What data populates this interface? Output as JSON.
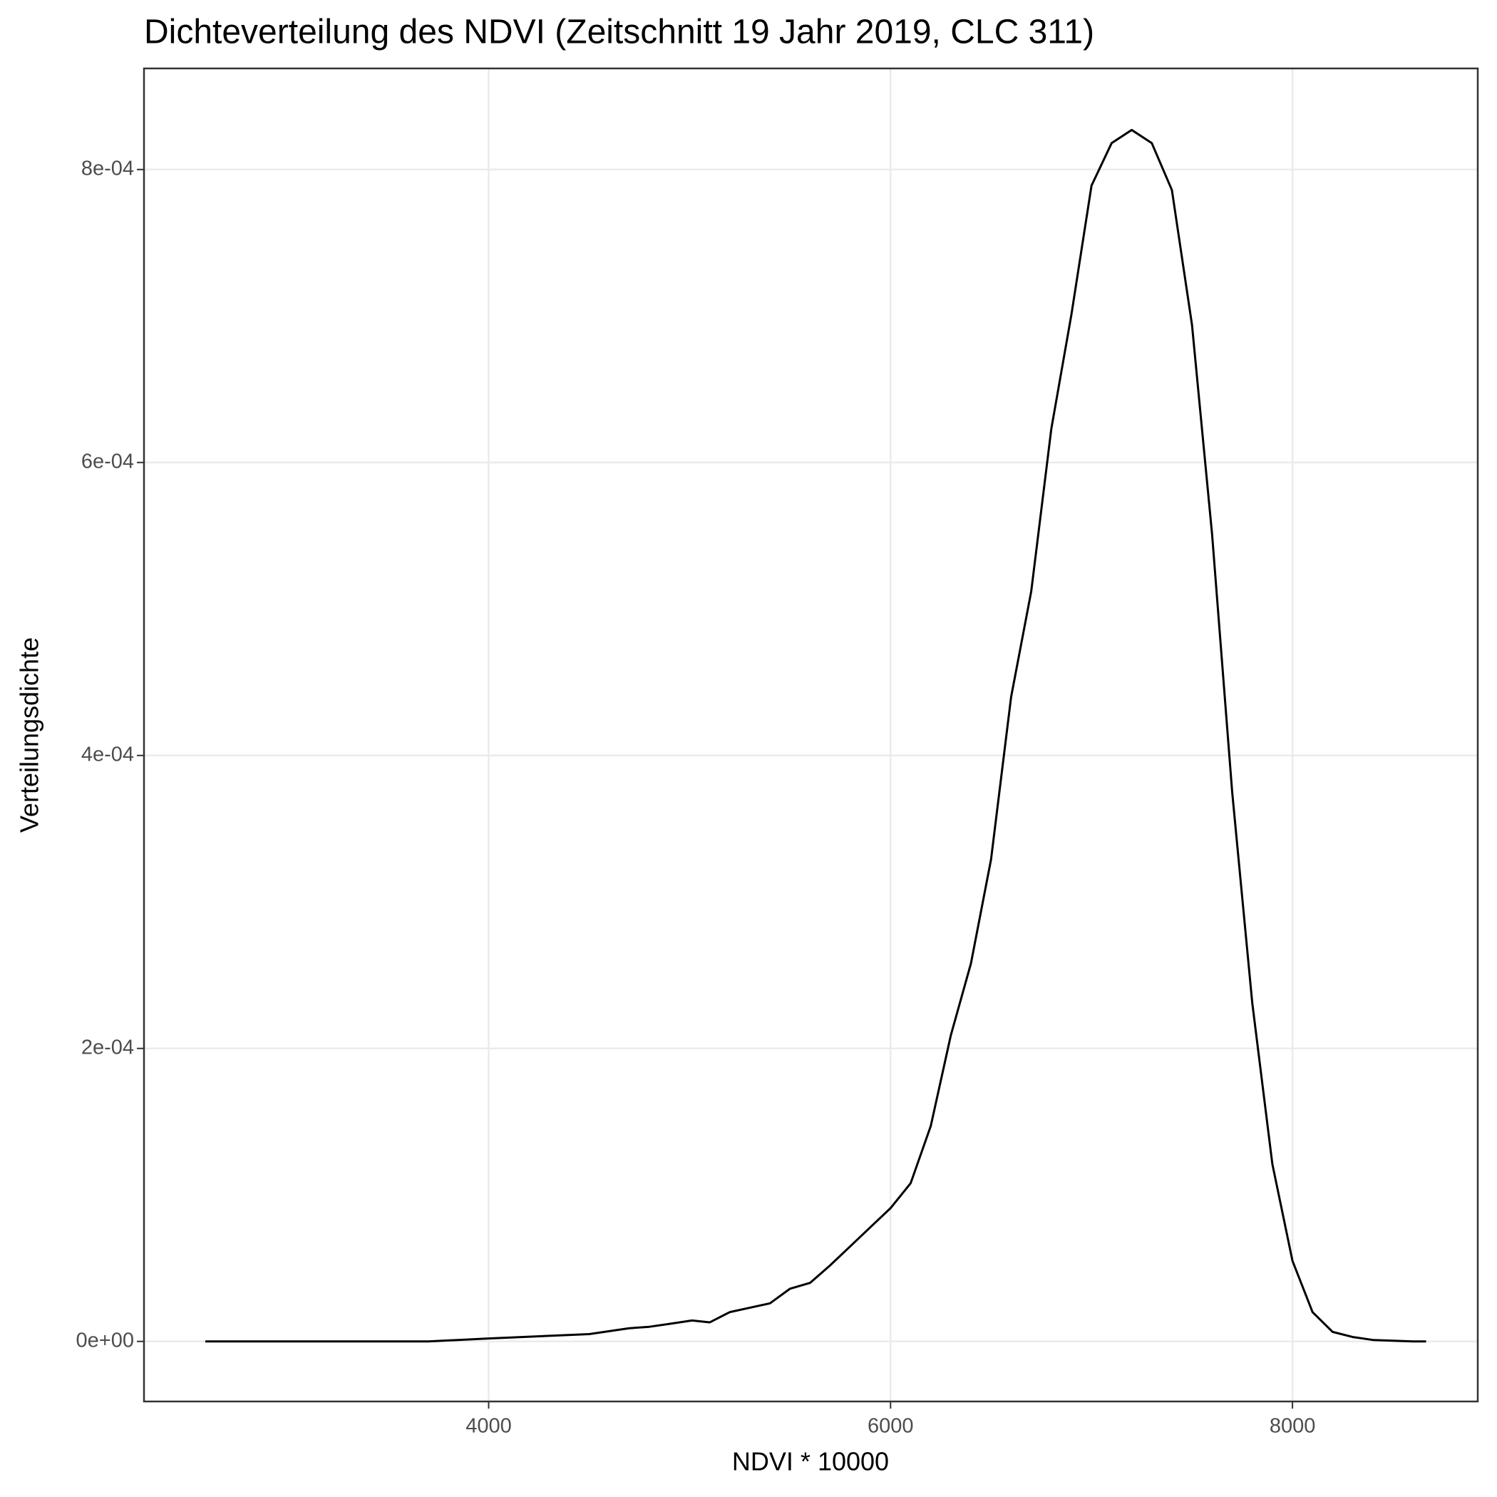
{
  "chart_data": {
    "type": "line",
    "title": "Dichteverteilung des NDVI (Zeitschnitt 19 Jahr 2019, CLC 311)",
    "x_label": "NDVI * 10000",
    "y_label": "Verteilungsdichte",
    "x": [
      2590,
      3000,
      3700,
      4000,
      4500,
      4600,
      4700,
      4800,
      4900,
      5012,
      5100,
      5200,
      5400,
      5500,
      5600,
      5700,
      5800,
      5900,
      6000,
      6100,
      6200,
      6300,
      6400,
      6500,
      6600,
      6700,
      6800,
      6900,
      7000,
      7100,
      7200,
      7300,
      7400,
      7500,
      7600,
      7700,
      7800,
      7900,
      8000,
      8100,
      8200,
      8300,
      8400,
      8600,
      8665
    ],
    "series": [
      {
        "name": "Dichte",
        "color": "#000000",
        "values": [
          0,
          0,
          0,
          2e-06,
          5e-06,
          7e-06,
          9e-06,
          1e-05,
          1.2e-05,
          1.43e-05,
          1.3e-05,
          2e-05,
          2.6e-05,
          3.6e-05,
          4e-05,
          5.2e-05,
          6.5e-05,
          7.8e-05,
          9.1e-05,
          0.000108,
          0.000147,
          0.000209,
          0.000258,
          0.000329,
          0.00044,
          0.000512,
          0.000623,
          0.000701,
          0.000789,
          0.000818,
          0.000827,
          0.000818,
          0.000786,
          0.000694,
          0.000551,
          0.000375,
          0.000231,
          0.000121,
          5.5e-05,
          2e-05,
          6.5e-06,
          3e-06,
          1e-06,
          0,
          0
        ]
      }
    ],
    "xlim": [
      2285,
      8922
    ],
    "ylim": [
      -4.1e-05,
      0.000869
    ],
    "xticks": [
      4000,
      6000,
      8000
    ],
    "yticks": [
      {
        "value": 0,
        "label": "0e+00"
      },
      {
        "value": 0.0002,
        "label": "2e-04"
      },
      {
        "value": 0.0004,
        "label": "4e-04"
      },
      {
        "value": 0.0006,
        "label": "6e-04"
      },
      {
        "value": 0.0008,
        "label": "8e-04"
      }
    ],
    "grid": true
  }
}
